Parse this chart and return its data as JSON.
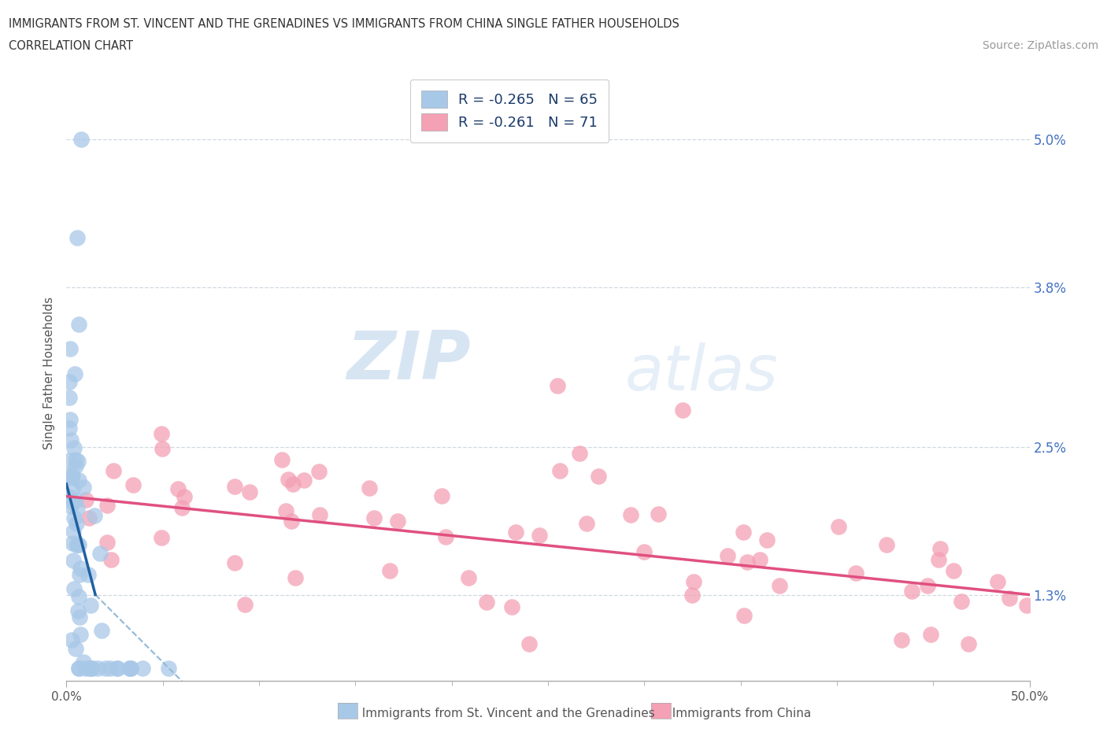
{
  "title_line1": "IMMIGRANTS FROM ST. VINCENT AND THE GRENADINES VS IMMIGRANTS FROM CHINA SINGLE FATHER HOUSEHOLDS",
  "title_line2": "CORRELATION CHART",
  "source": "Source: ZipAtlas.com",
  "ylabel": "Single Father Households",
  "y_tick_vals": [
    0.013,
    0.025,
    0.038,
    0.05
  ],
  "y_tick_labels": [
    "1.3%",
    "2.5%",
    "3.8%",
    "5.0%"
  ],
  "x_lim": [
    0.0,
    0.5
  ],
  "y_lim": [
    0.006,
    0.056
  ],
  "color_blue": "#a8c8e8",
  "color_pink": "#f4a0b5",
  "color_blue_line": "#2060a0",
  "color_pink_line": "#e05080",
  "color_blue_dash": "#90b8d8",
  "grid_color": "#d0d8e0",
  "watermark_color": "#c8ddf0",
  "tick_color": "#4472c4",
  "label_color": "#555555"
}
